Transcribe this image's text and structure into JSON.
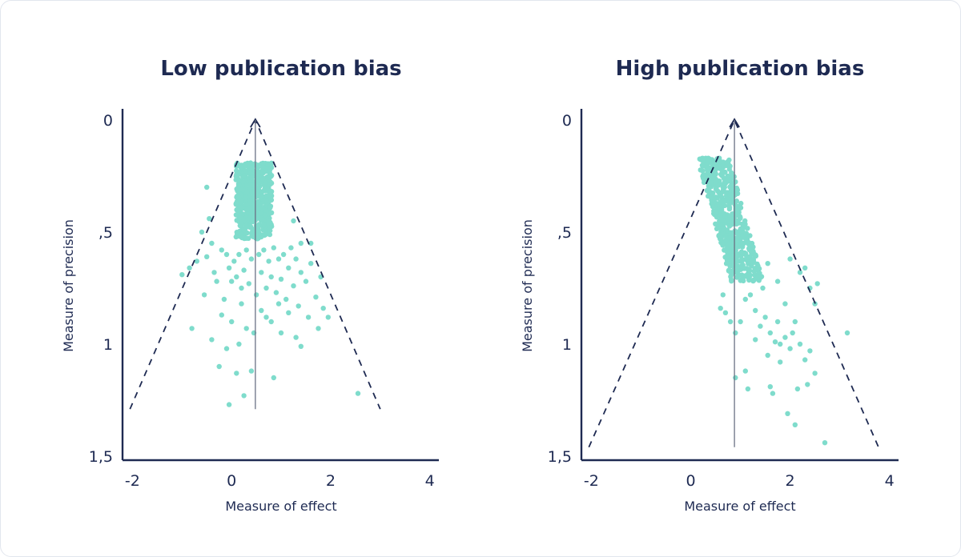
{
  "chart_data": [
    {
      "type": "scatter",
      "title": "Low publication bias",
      "xlabel": "Measure of effect",
      "ylabel": "Measure of precision",
      "xlim": [
        -2.2,
        4.15
      ],
      "ylim": [
        0,
        1.5
      ],
      "y_inverted": true,
      "xticks": [
        -2,
        0,
        2,
        4
      ],
      "xtick_labels": [
        "-2",
        "0",
        "2",
        "4"
      ],
      "yticks": [
        0,
        0.5,
        1,
        1.5
      ],
      "ytick_labels": [
        "0",
        ",5",
        "1",
        "1,5"
      ],
      "point_color": "#7fdccc",
      "line_color": "#1e2a52",
      "funnel": {
        "apex": [
          0.48,
          0
        ],
        "left_base": [
          -2.05,
          1.29
        ],
        "right_base": [
          3.0,
          1.29
        ]
      },
      "center_line": {
        "x": 0.48,
        "y_range": [
          0,
          1.29
        ]
      },
      "cluster": {
        "x_center": 0.45,
        "x_spread": 0.36,
        "y_range": [
          0.19,
          0.53
        ],
        "count": 520
      },
      "points": [
        [
          -1.0,
          0.69
        ],
        [
          -0.85,
          0.66
        ],
        [
          -0.8,
          0.93
        ],
        [
          -0.6,
          0.5
        ],
        [
          -0.5,
          0.61
        ],
        [
          -0.4,
          0.55
        ],
        [
          -0.35,
          0.68
        ],
        [
          -0.3,
          0.72
        ],
        [
          -0.2,
          0.58
        ],
        [
          -0.15,
          0.8
        ],
        [
          -0.1,
          0.6
        ],
        [
          -0.05,
          0.66
        ],
        [
          0.0,
          0.72
        ],
        [
          0.05,
          0.63
        ],
        [
          0.1,
          0.7
        ],
        [
          0.15,
          0.6
        ],
        [
          0.2,
          0.75
        ],
        [
          0.25,
          0.67
        ],
        [
          0.3,
          0.58
        ],
        [
          0.35,
          0.73
        ],
        [
          0.4,
          0.62
        ],
        [
          0.55,
          0.6
        ],
        [
          0.6,
          0.68
        ],
        [
          0.65,
          0.58
        ],
        [
          0.7,
          0.75
        ],
        [
          0.75,
          0.63
        ],
        [
          0.8,
          0.7
        ],
        [
          0.85,
          0.57
        ],
        [
          0.9,
          0.77
        ],
        [
          0.95,
          0.62
        ],
        [
          1.0,
          0.71
        ],
        [
          1.05,
          0.6
        ],
        [
          1.1,
          0.8
        ],
        [
          1.15,
          0.66
        ],
        [
          1.2,
          0.57
        ],
        [
          1.25,
          0.74
        ],
        [
          1.3,
          0.62
        ],
        [
          1.35,
          0.83
        ],
        [
          1.4,
          0.68
        ],
        [
          1.5,
          0.72
        ],
        [
          1.55,
          0.88
        ],
        [
          1.6,
          0.64
        ],
        [
          1.7,
          0.79
        ],
        [
          1.75,
          0.93
        ],
        [
          1.8,
          0.7
        ],
        [
          1.95,
          0.88
        ],
        [
          1.3,
          0.97
        ],
        [
          1.4,
          1.01
        ],
        [
          0.8,
          0.9
        ],
        [
          1.0,
          0.95
        ],
        [
          0.6,
          0.85
        ],
        [
          0.3,
          0.93
        ],
        [
          -0.4,
          0.98
        ],
        [
          -0.25,
          1.1
        ],
        [
          -0.1,
          1.02
        ],
        [
          0.0,
          0.9
        ],
        [
          0.1,
          1.13
        ],
        [
          0.25,
          1.23
        ],
        [
          0.4,
          1.12
        ],
        [
          0.85,
          1.15
        ],
        [
          -0.05,
          1.27
        ],
        [
          1.4,
          0.55
        ],
        [
          1.25,
          0.45
        ],
        [
          -0.5,
          0.3
        ],
        [
          -0.45,
          0.44
        ],
        [
          2.55,
          1.22
        ],
        [
          0.2,
          0.82
        ],
        [
          0.5,
          0.78
        ],
        [
          0.7,
          0.88
        ],
        [
          1.6,
          0.55
        ],
        [
          -0.7,
          0.63
        ],
        [
          -0.55,
          0.78
        ],
        [
          0.95,
          0.82
        ],
        [
          1.15,
          0.86
        ],
        [
          0.45,
          0.95
        ],
        [
          -0.2,
          0.87
        ],
        [
          1.85,
          0.84
        ],
        [
          0.15,
          1.0
        ]
      ]
    },
    {
      "type": "scatter",
      "title": "High publication bias",
      "xlabel": "Measure of effect",
      "ylabel": "Measure of precision",
      "xlim": [
        -2.2,
        4.15
      ],
      "ylim": [
        0,
        1.5
      ],
      "y_inverted": true,
      "xticks": [
        -2,
        0,
        2,
        4
      ],
      "xtick_labels": [
        "-2",
        "0",
        "2",
        "4"
      ],
      "yticks": [
        0,
        0.5,
        1,
        1.5
      ],
      "ytick_labels": [
        "0",
        ",5",
        "1",
        "1,5"
      ],
      "point_color": "#7fdccc",
      "line_color": "#1e2a52",
      "funnel": {
        "apex": [
          0.88,
          0
        ],
        "left_base": [
          -2.05,
          1.46
        ],
        "right_base": [
          3.78,
          1.46
        ]
      },
      "center_line": {
        "x": 0.88,
        "y_range": [
          0,
          1.46
        ]
      },
      "cluster": {
        "x_start": 0.45,
        "x_slope": 1.25,
        "x_spread": 0.32,
        "y_range": [
          0.17,
          0.72
        ],
        "count": 560
      },
      "points": [
        [
          0.6,
          0.84
        ],
        [
          0.7,
          0.86
        ],
        [
          0.9,
          0.95
        ],
        [
          1.0,
          0.9
        ],
        [
          1.1,
          0.8
        ],
        [
          1.2,
          0.78
        ],
        [
          1.3,
          0.85
        ],
        [
          1.4,
          0.92
        ],
        [
          1.5,
          0.88
        ],
        [
          1.6,
          0.95
        ],
        [
          1.7,
          0.99
        ],
        [
          1.75,
          0.9
        ],
        [
          1.8,
          1.0
        ],
        [
          1.9,
          0.97
        ],
        [
          2.0,
          1.02
        ],
        [
          2.05,
          0.95
        ],
        [
          2.2,
          1.0
        ],
        [
          2.3,
          1.07
        ],
        [
          2.4,
          1.03
        ],
        [
          2.5,
          1.13
        ],
        [
          2.35,
          1.18
        ],
        [
          2.15,
          1.2
        ],
        [
          1.6,
          1.19
        ],
        [
          1.65,
          1.22
        ],
        [
          1.15,
          1.2
        ],
        [
          0.9,
          1.15
        ],
        [
          1.95,
          1.31
        ],
        [
          2.1,
          1.36
        ],
        [
          2.7,
          1.44
        ],
        [
          3.15,
          0.95
        ],
        [
          2.4,
          0.75
        ],
        [
          2.3,
          0.66
        ],
        [
          2.2,
          0.68
        ],
        [
          2.0,
          0.62
        ],
        [
          2.55,
          0.73
        ],
        [
          2.5,
          0.82
        ],
        [
          1.55,
          0.64
        ],
        [
          1.75,
          0.72
        ],
        [
          1.3,
          0.98
        ],
        [
          1.55,
          1.05
        ],
        [
          1.8,
          1.08
        ],
        [
          1.1,
          1.12
        ],
        [
          0.65,
          0.78
        ],
        [
          0.8,
          0.9
        ],
        [
          1.45,
          0.75
        ],
        [
          1.9,
          0.82
        ],
        [
          1.35,
          0.7
        ],
        [
          2.1,
          0.9
        ]
      ]
    }
  ]
}
